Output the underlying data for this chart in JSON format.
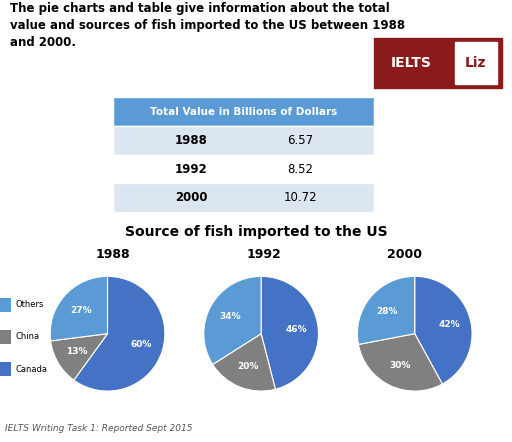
{
  "title_text": "The pie charts and table give information about the total\nvalue and sources of fish imported to the US between 1988\nand 2000.",
  "table_header": "Total Value in Billions of Dollars",
  "table_rows": [
    [
      "1988",
      "6.57"
    ],
    [
      "1992",
      "8.52"
    ],
    [
      "2000",
      "10.72"
    ]
  ],
  "table_header_color": "#5b9bd5",
  "table_row_colors": [
    "#dce6f1",
    "#ffffff",
    "#dce6f1"
  ],
  "pie_title": "Source of fish imported to the US",
  "pie_years": [
    "1988",
    "1992",
    "2000"
  ],
  "pie_data": [
    [
      60,
      13,
      27
    ],
    [
      46,
      20,
      34
    ],
    [
      42,
      30,
      28
    ]
  ],
  "pie_labels": [
    [
      "60%",
      "13%",
      "27%"
    ],
    [
      "46%",
      "20%",
      "34%"
    ],
    [
      "42%",
      "30%",
      "28%"
    ]
  ],
  "pie_colors": [
    "#4472c4",
    "#808080",
    "#5b9bd5"
  ],
  "legend_labels": [
    "Others",
    "China",
    "Canada"
  ],
  "legend_colors": [
    "#5b9bd5",
    "#808080",
    "#4472c4"
  ],
  "footer_text": "IELTS Writing Task 1: Reported Sept 2015",
  "background_color": "#ffffff",
  "ielts_bg": "#8b1a1a"
}
